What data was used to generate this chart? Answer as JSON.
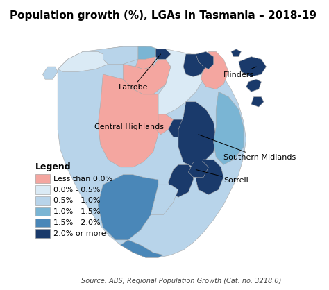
{
  "title": "Population growth (%), LGAs in Tasmania – 2018-19",
  "source_text": "Source: ABS, Regional Population Growth (Cat. no. 3218.0)",
  "legend_title": "Legend",
  "legend_items": [
    {
      "label": "Less than 0.0%",
      "color": "#f4a6a0"
    },
    {
      "label": "0.0% - 0.5%",
      "color": "#daeaf5"
    },
    {
      "label": "0.5% - 1.0%",
      "color": "#b8d4ea"
    },
    {
      "label": "1.0% - 1.5%",
      "color": "#7ab5d4"
    },
    {
      "label": "1.5% - 2.0%",
      "color": "#4a87b8"
    },
    {
      "label": "2.0% or more",
      "color": "#1a3a6b"
    }
  ],
  "background_color": "#ffffff",
  "title_fontsize": 11,
  "legend_fontsize": 8,
  "annotation_fontsize": 8,
  "map_xlim": [
    0.0,
    1.05
  ],
  "map_ylim": [
    0.05,
    1.02
  ]
}
